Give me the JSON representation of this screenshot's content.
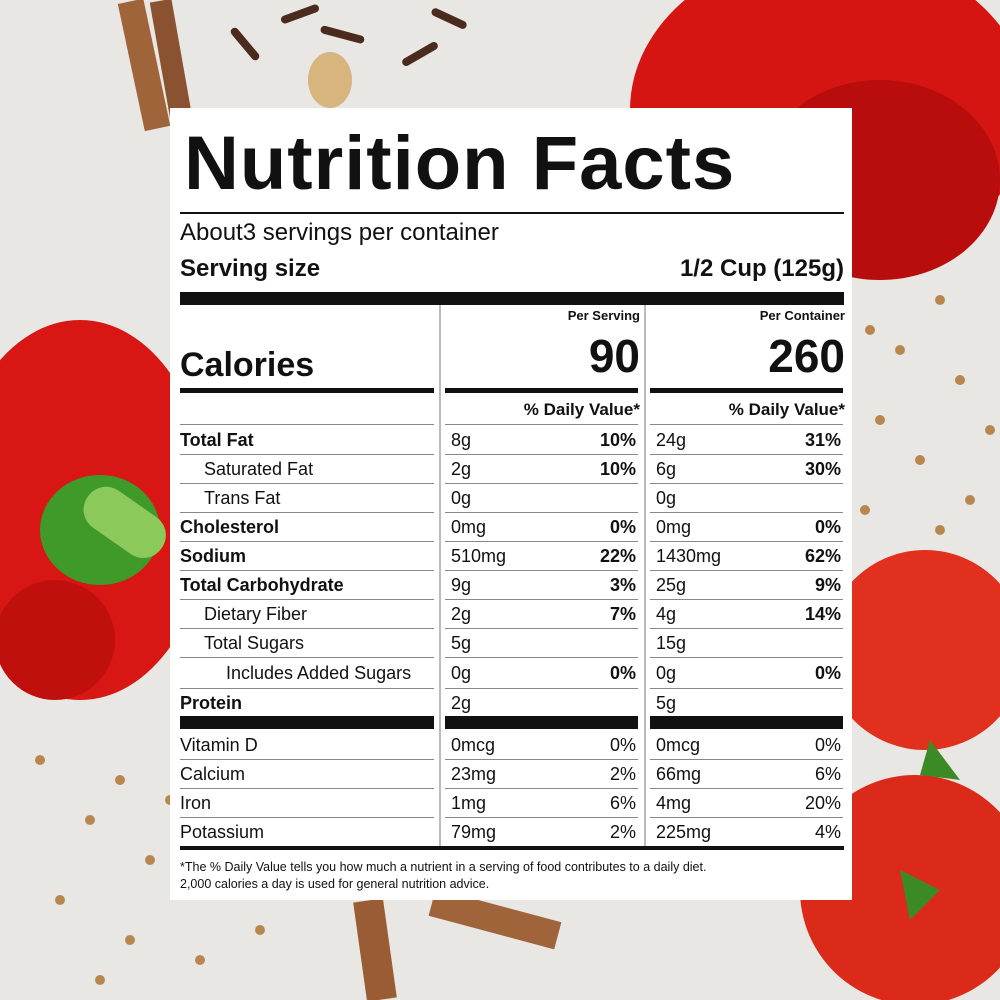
{
  "header": {
    "title": "Nutrition Facts",
    "servings": "About3 servings per container",
    "serving_size_label": "Serving size",
    "serving_size": "1/2 Cup (125g)"
  },
  "columns": [
    "Per Serving",
    "Per Container"
  ],
  "calories": {
    "label": "Calories",
    "values": [
      "90",
      "260"
    ]
  },
  "daily_value_header": "% Daily Value*",
  "table": {
    "rows": [
      [
        "Total Fat",
        "8g",
        "10%",
        "24g",
        "31%"
      ],
      [
        "Saturated Fat",
        "2g",
        "10%",
        "6g",
        "30%"
      ],
      [
        "Trans Fat",
        "0g",
        null,
        "0g",
        null
      ],
      [
        "Cholesterol",
        "0mg",
        "0%",
        "0mg",
        "0%"
      ],
      [
        "Sodium",
        "510mg",
        "22%",
        "1430mg",
        "62%"
      ],
      [
        "Total Carbohydrate",
        "9g",
        "3%",
        "25g",
        "9%"
      ],
      [
        "Dietary Fiber",
        "2g",
        "7%",
        "4g",
        "14%"
      ],
      [
        "Total Sugars",
        "5g",
        null,
        "15g",
        null
      ],
      [
        "Includes Added Sugars",
        "0g",
        "0%",
        "0g",
        "0%"
      ],
      [
        "Protein",
        "2g",
        null,
        "5g",
        null
      ]
    ],
    "vitamins": [
      [
        "Vitamin D",
        "0mcg",
        "0%",
        "0mcg",
        "0%"
      ],
      [
        "Calcium",
        "23mg",
        "2%",
        "66mg",
        "6%"
      ],
      [
        "Iron",
        "1mg",
        "6%",
        "4mg",
        "20%"
      ],
      [
        "Potassium",
        "79mg",
        "2%",
        "225mg",
        "4%"
      ]
    ]
  },
  "footnote": [
    "*The % Daily Value tells you how much a nutrient in a serving of food contributes to a daily diet.",
    "2,000 calories a day is used for general nutrition advice."
  ]
}
